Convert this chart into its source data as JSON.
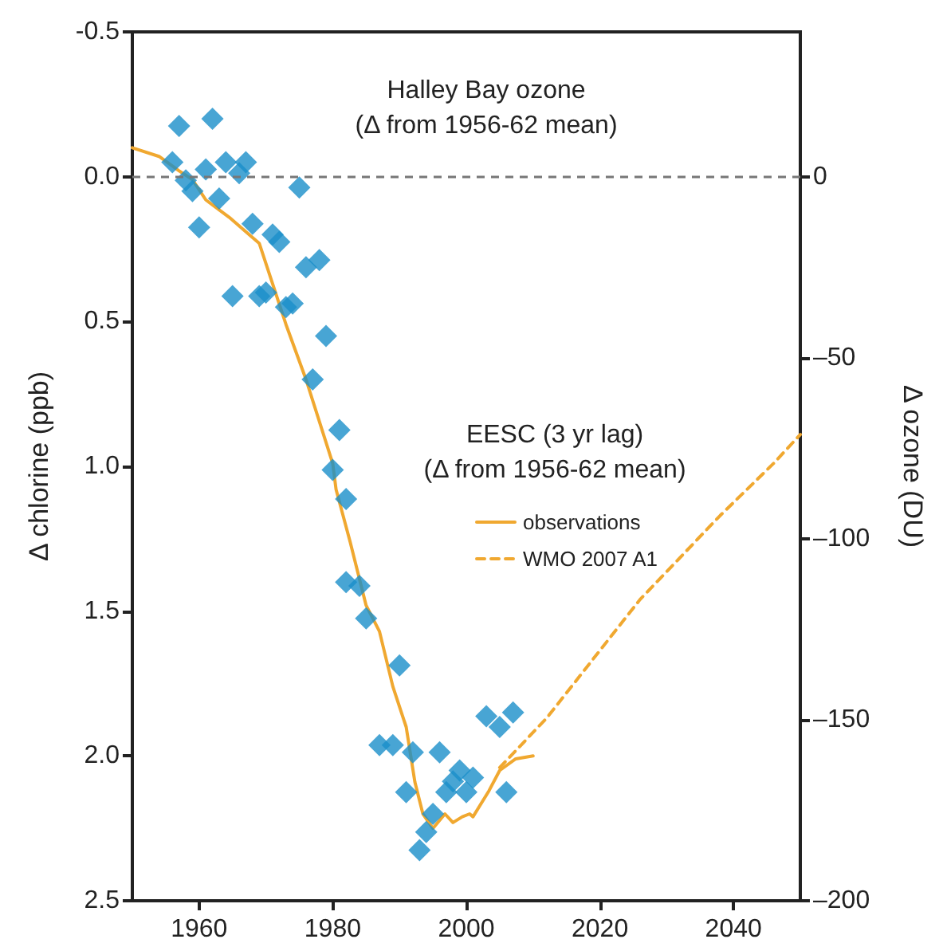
{
  "chart_data": {
    "type": "line",
    "xlim": [
      1950,
      2050
    ],
    "xticks": [
      1960,
      1980,
      2000,
      2020,
      2040
    ],
    "ylim": [
      2.5,
      -0.5
    ],
    "yticks": [
      {
        "value": -0.5,
        "label": "-0.5"
      },
      {
        "value": 0,
        "label": "0.0"
      },
      {
        "value": 0.5,
        "label": "0.5"
      },
      {
        "value": 1,
        "label": "1.0"
      },
      {
        "value": 1.5,
        "label": "1.5"
      },
      {
        "value": 2,
        "label": "2.0"
      },
      {
        "value": 2.5,
        "label": "2.5"
      }
    ],
    "y2lim": [
      -200,
      40
    ],
    "y2ticks": [
      {
        "value": -200,
        "label": "–200"
      },
      {
        "value": -150,
        "label": "–150"
      },
      {
        "value": -100,
        "label": "–100"
      },
      {
        "value": -50,
        "label": "–50"
      },
      0
    ],
    "ylabel": "Δ chlorine (ppb)",
    "y2label": "Δ ozone (DU)",
    "legend_title": "EESC (3 yr lag)\n(Δ from 1956-62 mean)",
    "legend": "right",
    "annotations": [
      "Halley Bay ozone\n(Δ from 1956-62 mean)"
    ],
    "grid": false,
    "ref_lines": [
      {
        "axis": "y",
        "value": 0,
        "color": "#777777",
        "line_style": "dashed"
      }
    ],
    "series": [
      {
        "type": "scatter",
        "axis": "y2",
        "marker": "diamond",
        "color": "#1a8fc9",
        "x": [
          1956,
          1957,
          1958,
          1959,
          1960,
          1961,
          1962,
          1963,
          1964,
          1965,
          1966,
          1967,
          1968,
          1969,
          1970,
          1971,
          1972,
          1973,
          1974,
          1975,
          1976,
          1977,
          1978,
          1979,
          1980,
          1981,
          1982,
          1982,
          1984,
          1985,
          1987,
          1989,
          1990,
          1991,
          1992,
          1993,
          1994,
          1995,
          1996,
          1997,
          1998,
          1999,
          2000,
          2001,
          2003,
          2005,
          2006,
          2007
        ],
        "values": [
          4,
          14,
          -1,
          -4,
          -14,
          2,
          16,
          -6,
          4,
          -33,
          1,
          4,
          -13,
          -33,
          -32,
          -16,
          -18,
          -36,
          -35,
          -3,
          -25,
          -56,
          -23,
          -44,
          -81,
          -70,
          -89,
          -112,
          -113,
          -122,
          -157,
          -157,
          -135,
          -170,
          -159,
          -186,
          -181,
          -176,
          -159,
          -170,
          -167,
          -164,
          -170,
          -166,
          -149,
          -152,
          -170,
          -148
        ]
      },
      {
        "type": "line",
        "name": "observations",
        "marker": "none",
        "line_style": "solid",
        "color": "#f0a830",
        "x": [
          1950,
          1954,
          1957,
          1959,
          1961,
          1964.5,
          1967,
          1969,
          1973,
          1976,
          1980,
          1980.5,
          1982.6,
          1985,
          1987,
          1989,
          1991,
          1992.3,
          1993.5,
          1995,
          1996.8,
          1998,
          1999.4,
          2000.5,
          2001,
          2003.4,
          2005,
          2007.4,
          2010
        ],
        "values": [
          -0.1,
          -0.07,
          -0.02,
          0.01,
          0.08,
          0.14,
          0.19,
          0.23,
          0.51,
          0.7,
          0.99,
          1.08,
          1.26,
          1.48,
          1.57,
          1.76,
          1.9,
          2.09,
          2.2,
          2.25,
          2.2,
          2.23,
          2.21,
          2.2,
          2.21,
          2.12,
          2.05,
          2.01,
          2.0
        ]
      },
      {
        "type": "line",
        "name": "WMO 2007 A1",
        "marker": "none",
        "line_style": "dashed",
        "color": "#f0a830",
        "x": [
          2005,
          2012,
          2026,
          2038,
          2046,
          2050
        ],
        "values": [
          2.04,
          1.87,
          1.46,
          1.17,
          0.99,
          0.89
        ]
      }
    ]
  }
}
